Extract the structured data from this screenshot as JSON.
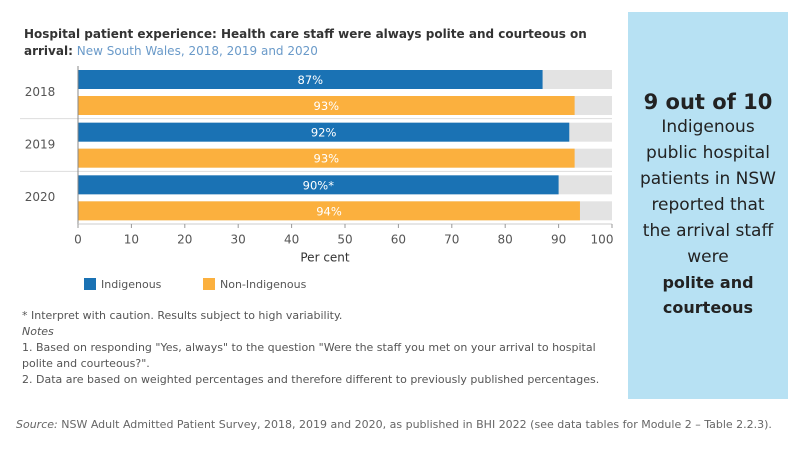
{
  "chart_data": {
    "type": "bar",
    "orientation": "horizontal",
    "title": "Hospital patient experience: Health care staff were always polite and courteous on arrival:",
    "subtitle": "New South Wales, 2018, 2019 and 2020",
    "categories": [
      "2018",
      "2019",
      "2020"
    ],
    "series": [
      {
        "name": "Indigenous",
        "color": "#1a72b4",
        "values": [
          87,
          92,
          90
        ],
        "value_labels": [
          "87%",
          "92%",
          "90%*"
        ]
      },
      {
        "name": "Non-Indigenous",
        "color": "#fbb03e",
        "values": [
          93,
          93,
          94
        ],
        "value_labels": [
          "93%",
          "93%",
          "94%"
        ]
      }
    ],
    "xlim": [
      0,
      100
    ],
    "xticks": [
      0,
      10,
      20,
      30,
      40,
      50,
      60,
      70,
      80,
      90,
      100
    ],
    "xlabel": "Per cent",
    "track_color": "#e3e3e3"
  },
  "footnote": "* Interpret with caution. Results subject to high variability.",
  "notes_heading": "Notes",
  "notes": [
    "1. Based on responding \"Yes, always\" to the question \"Were the staff you met on your arrival to hospital polite and courteous?\".",
    "2. Data are based on weighted percentages and therefore different to previously published percentages."
  ],
  "source_label": "Source:",
  "source": "NSW Adult Admitted Patient Survey, 2018, 2019 and 2020, as published in BHI 2022 (see data tables for Module 2 – Table 2.2.3).",
  "side_panel": {
    "headline": "9 out of 10",
    "text": "Indigenous public hospital patients in NSW reported that the arrival staff were",
    "emphasis": "polite and courteous"
  }
}
